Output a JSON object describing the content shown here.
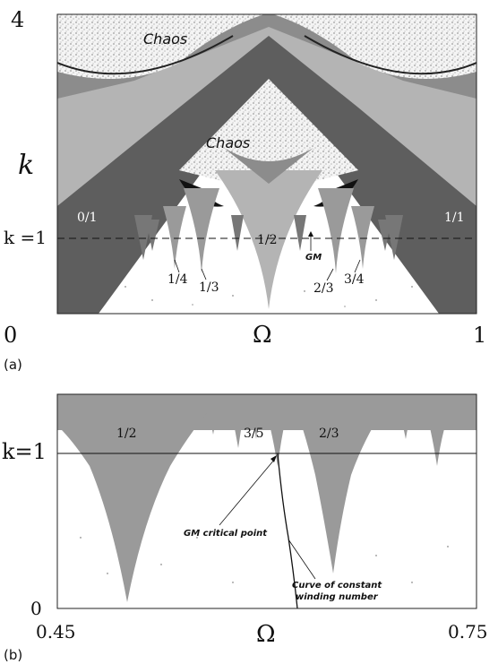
{
  "colors": {
    "white": "#ffffff",
    "light_gray": "#b4b4b4",
    "mid_gray": "#8c8c8c",
    "dark_gray": "#5e5e5e",
    "black": "#111111"
  },
  "panel_a": {
    "y_tick_top": "4",
    "y_label": "k",
    "k1_label": "k =1",
    "x_tick_left": "0",
    "x_label": "Ω",
    "x_tick_right": "1",
    "panel_tag": "(a)",
    "chaos_top": "Chaos",
    "chaos_middle": "Chaos",
    "tongue_labels": {
      "t0_1": "0/1",
      "t1_1": "1/1",
      "t1_2": "1/2",
      "t1_4": "1/4",
      "t1_3": "1/3",
      "t2_3": "2/3",
      "t3_4": "3/4"
    },
    "gm_label": "GM"
  },
  "panel_b": {
    "k1_label": "k=1",
    "y_tick_bottom": "0",
    "x_tick_left": "0.45",
    "x_label": "Ω",
    "x_tick_right": "0.75",
    "panel_tag": "(b)",
    "tongue_labels": {
      "t1_2": "1/2",
      "t3_5": "3/5",
      "t2_3": "2/3"
    },
    "gm_critical_point": "GM critical point",
    "curve_line1": "Curve of constant",
    "curve_line2": "winding number"
  }
}
